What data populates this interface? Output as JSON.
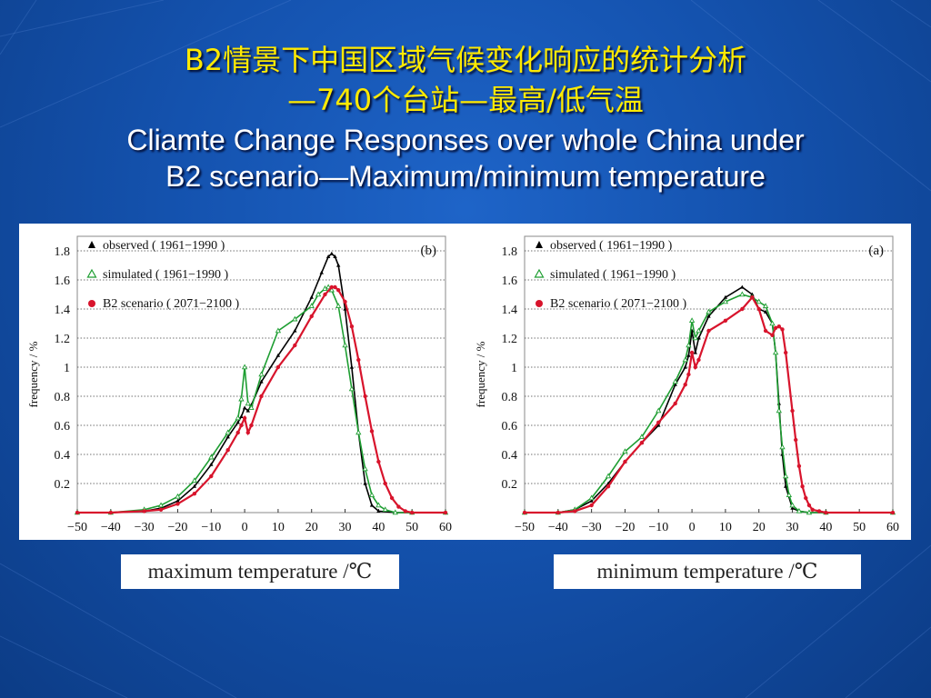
{
  "slide": {
    "title_zh_line1": "B2情景下中国区域气候变化响应的统计分析",
    "title_zh_line2": "—740个台站—最高/低气温",
    "title_en_line1": "Cliamte Change Responses over whole China under",
    "title_en_line2": "B2 scenario—Maximum/minimum temperature"
  },
  "colors": {
    "observed": "#000000",
    "simulated": "#1e9e32",
    "b2": "#d8142c",
    "title_zh": "#ffea00",
    "title_en": "#ffffff"
  },
  "chart_data": [
    {
      "type": "line",
      "panel_label": "(b)",
      "xlabel": "maximum temperature /℃",
      "ylabel": "frequency / %",
      "xlim": [
        -50,
        60
      ],
      "ylim": [
        0,
        1.9
      ],
      "xticks": [
        "−50",
        "−40",
        "−30",
        "−20",
        "−10",
        "0",
        "10",
        "20",
        "30",
        "40",
        "50",
        "60"
      ],
      "yticks": [
        "0.2",
        "0.4",
        "0.6",
        "0.8",
        "1",
        "1.2",
        "1.4",
        "1.6",
        "1.8"
      ],
      "grid": "horizontal dotted",
      "legend_position": "top-left",
      "series": [
        {
          "name": "observed ( 1961−1990 )",
          "marker": "triangle-filled",
          "x": [
            -50,
            -40,
            -30,
            -25,
            -20,
            -15,
            -10,
            -5,
            -2,
            -1,
            0,
            1,
            2,
            5,
            10,
            15,
            20,
            23,
            25,
            26,
            27,
            28,
            30,
            32,
            34,
            36,
            38,
            40,
            45,
            50,
            60
          ],
          "y": [
            0,
            0,
            0.01,
            0.03,
            0.08,
            0.18,
            0.33,
            0.52,
            0.62,
            0.66,
            0.72,
            0.7,
            0.74,
            0.9,
            1.08,
            1.25,
            1.48,
            1.65,
            1.76,
            1.78,
            1.76,
            1.7,
            1.4,
            1.0,
            0.55,
            0.2,
            0.05,
            0.01,
            0,
            0,
            0
          ]
        },
        {
          "name": "simulated ( 1961−1990 )",
          "marker": "triangle-open",
          "x": [
            -50,
            -40,
            -30,
            -25,
            -20,
            -15,
            -10,
            -5,
            -2,
            -1,
            0,
            1,
            2,
            5,
            10,
            15,
            20,
            22,
            24,
            25,
            26,
            28,
            30,
            32,
            34,
            36,
            38,
            40,
            42,
            45,
            50,
            60
          ],
          "y": [
            0,
            0,
            0.02,
            0.05,
            0.11,
            0.22,
            0.38,
            0.55,
            0.65,
            0.78,
            1.0,
            0.75,
            0.72,
            0.95,
            1.25,
            1.33,
            1.42,
            1.5,
            1.54,
            1.55,
            1.53,
            1.42,
            1.15,
            0.85,
            0.55,
            0.3,
            0.12,
            0.05,
            0.02,
            0,
            0,
            0
          ]
        },
        {
          "name": "B2 scenario ( 2071−2100 )",
          "marker": "circle-filled",
          "x": [
            -50,
            -40,
            -30,
            -25,
            -20,
            -15,
            -10,
            -5,
            -2,
            -1,
            0,
            1,
            2,
            5,
            10,
            15,
            20,
            24,
            26,
            27,
            28,
            30,
            32,
            34,
            36,
            38,
            40,
            42,
            44,
            46,
            48,
            50,
            60
          ],
          "y": [
            0,
            0,
            0.01,
            0.02,
            0.06,
            0.13,
            0.25,
            0.43,
            0.55,
            0.6,
            0.65,
            0.55,
            0.6,
            0.8,
            1.0,
            1.15,
            1.35,
            1.5,
            1.55,
            1.55,
            1.53,
            1.45,
            1.28,
            1.05,
            0.8,
            0.56,
            0.35,
            0.2,
            0.1,
            0.04,
            0.01,
            0,
            0
          ]
        }
      ]
    },
    {
      "type": "line",
      "panel_label": "(a)",
      "xlabel": "minimum temperature /℃",
      "ylabel": "frequency / %",
      "xlim": [
        -50,
        60
      ],
      "ylim": [
        0,
        1.9
      ],
      "xticks": [
        "−50",
        "−40",
        "−30",
        "−20",
        "−10",
        "0",
        "10",
        "20",
        "30",
        "40",
        "50",
        "60"
      ],
      "yticks": [
        "0.2",
        "0.4",
        "0.6",
        "0.8",
        "1",
        "1.2",
        "1.4",
        "1.6",
        "1.8"
      ],
      "grid": "horizontal dotted",
      "legend_position": "top-left",
      "series": [
        {
          "name": "observed ( 1961−1990 )",
          "marker": "triangle-filled",
          "x": [
            -50,
            -40,
            -35,
            -30,
            -25,
            -20,
            -15,
            -10,
            -5,
            -2,
            -1,
            0,
            1,
            2,
            5,
            10,
            15,
            18,
            20,
            22,
            24,
            25,
            26,
            27,
            28,
            30,
            32,
            35,
            40,
            60
          ],
          "y": [
            0,
            0,
            0.02,
            0.08,
            0.2,
            0.35,
            0.48,
            0.6,
            0.88,
            1.0,
            1.08,
            1.25,
            1.1,
            1.2,
            1.35,
            1.48,
            1.55,
            1.5,
            1.4,
            1.38,
            1.3,
            1.1,
            0.75,
            0.4,
            0.18,
            0.03,
            0.01,
            0,
            0,
            0
          ]
        },
        {
          "name": "simulated ( 1961−1990 )",
          "marker": "triangle-open",
          "x": [
            -50,
            -40,
            -35,
            -30,
            -25,
            -20,
            -15,
            -10,
            -5,
            -2,
            -1,
            0,
            1,
            2,
            5,
            10,
            15,
            18,
            20,
            22,
            24,
            25,
            26,
            27,
            28,
            29,
            30,
            32,
            35,
            40,
            60
          ],
          "y": [
            0,
            0,
            0.02,
            0.1,
            0.25,
            0.42,
            0.52,
            0.7,
            0.9,
            1.05,
            1.15,
            1.32,
            1.2,
            1.25,
            1.38,
            1.45,
            1.5,
            1.48,
            1.45,
            1.42,
            1.3,
            1.1,
            0.7,
            0.45,
            0.25,
            0.12,
            0.05,
            0.01,
            0,
            0,
            0
          ]
        },
        {
          "name": "B2 scenario ( 2071−2100 )",
          "marker": "circle-filled",
          "x": [
            -50,
            -40,
            -35,
            -30,
            -25,
            -20,
            -15,
            -10,
            -5,
            -2,
            -1,
            0,
            1,
            2,
            5,
            10,
            15,
            18,
            20,
            22,
            24,
            25,
            26,
            27,
            28,
            30,
            31,
            32,
            33,
            34,
            35,
            36,
            38,
            40,
            60
          ],
          "y": [
            0,
            0,
            0.01,
            0.05,
            0.18,
            0.35,
            0.48,
            0.62,
            0.75,
            0.88,
            0.95,
            1.1,
            1.0,
            1.05,
            1.25,
            1.32,
            1.4,
            1.48,
            1.4,
            1.25,
            1.22,
            1.27,
            1.28,
            1.26,
            1.1,
            0.7,
            0.5,
            0.32,
            0.18,
            0.1,
            0.05,
            0.02,
            0.01,
            0,
            0
          ]
        }
      ]
    }
  ]
}
